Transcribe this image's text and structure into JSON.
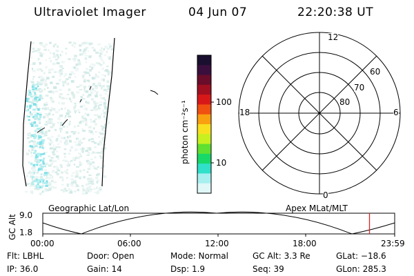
{
  "header": {
    "instrument": "Ultraviolet Imager",
    "date": "04 Jun 07",
    "time": "22:20:38 UT"
  },
  "colorbar": {
    "unit_label": "photon cm⁻²s⁻¹",
    "ticks": [
      "100",
      "10"
    ],
    "colors": [
      "#1a0f2e",
      "#3a0f3e",
      "#6a0d2a",
      "#a01020",
      "#d81818",
      "#f05010",
      "#f8a010",
      "#f8e020",
      "#c8f020",
      "#60e030",
      "#18d868",
      "#30e0c8",
      "#a8f0f0",
      "#e0f8f8"
    ]
  },
  "polar_plot": {
    "lat_labels": [
      "60",
      "70",
      "80"
    ],
    "mlt_labels": {
      "top": "12",
      "left": "18",
      "right": "6",
      "bottom": "0"
    }
  },
  "altitude_panel": {
    "left_title": "Geographic Lat/Lon",
    "right_title": "Apex MLat/MLT",
    "y_axis_label": "GC Alt",
    "y_ticks": [
      "9.0",
      "1.8"
    ],
    "x_ticks": [
      "00:00",
      "06:00",
      "12:00",
      "18:00",
      "23:59"
    ],
    "current_time_fraction": 0.9285,
    "marker_color": "#e02020"
  },
  "info": {
    "flt": "Flt: LBHL",
    "ip": "IP: 36.0",
    "door": "Door: Open",
    "gain": "Gain: 14",
    "mode": "Mode: Normal",
    "dsp": "Dsp:    1.9",
    "gc_alt": "GC Alt: 3.3 Re",
    "seq": "Seq: 39",
    "glat": "GLat: −18.6",
    "glon": "GLon: 285.3"
  }
}
